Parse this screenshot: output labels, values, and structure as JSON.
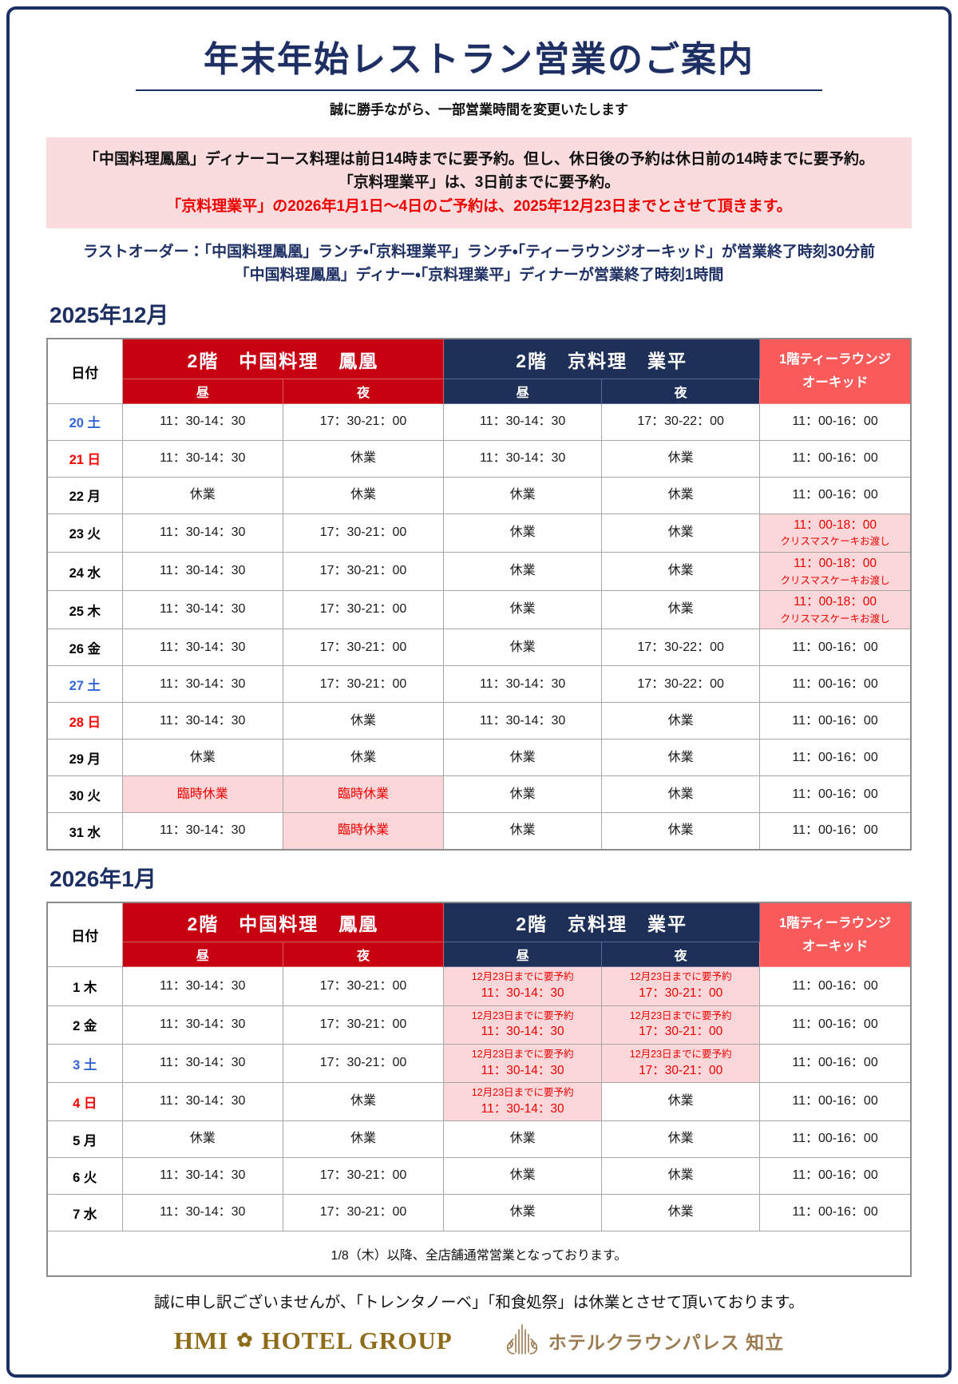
{
  "title": "年末年始レストラン営業のご案内",
  "subtitle": "誠に勝手ながら、一部営業時間を変更いたします",
  "notice": {
    "lines": [
      "「中国料理鳳凰」ディナーコース料理は前日14時までに要予約。但し、休日後の予約は休日前の14時までに要予約。",
      "「京料理業平」は、3日前までに要予約。",
      "「京料理業平」の2026年1月1日～4日のご予約は、2025年12月23日までとさせて頂きます。"
    ]
  },
  "last_order": [
    "ラストオーダー：「中国料理鳳凰」ランチ・「京料理業平」ランチ・「ティーラウンジオーキッド」が営業終了時刻30分前",
    "「中国料理鳳凰」ディナー・「京料理業平」ディナーが営業終了時刻1時間"
  ],
  "colors": {
    "navy": "#1E2F63",
    "table_navy": "#1F3058",
    "red": "#C70012",
    "salmon": "#F95B5B",
    "pink": "#FBD7D9",
    "red_text": "#EE0000",
    "sat": "#3365D6",
    "sun": "#FF0000",
    "gold": "#8E6C1A",
    "gold2": "#9A7B4F"
  },
  "tables": [
    {
      "month_label": "2025年12月",
      "columns": {
        "date": "日付",
        "restaurant1": "2階　中国料理　鳳凰",
        "restaurant2": "2階　京料理　業平",
        "lounge": [
          "1階ティーラウンジ",
          "オーキッド"
        ],
        "lunch": "昼",
        "dinner": "夜"
      },
      "rows": [
        {
          "date": "20 土",
          "color": "sat",
          "cells": [
            {
              "lines": [
                "11：30-14：30"
              ]
            },
            {
              "lines": [
                "17：30-21：00"
              ]
            },
            {
              "lines": [
                "11：30-14：30"
              ]
            },
            {
              "lines": [
                "17：30-22：00"
              ]
            },
            {
              "lines": [
                "11：00-16：00"
              ]
            }
          ]
        },
        {
          "date": "21 日",
          "color": "sun",
          "cells": [
            {
              "lines": [
                "11：30-14：30"
              ]
            },
            {
              "lines": [
                "休業"
              ]
            },
            {
              "lines": [
                "11：30-14：30"
              ]
            },
            {
              "lines": [
                "休業"
              ]
            },
            {
              "lines": [
                "11：00-16：00"
              ]
            }
          ]
        },
        {
          "date": "22 月",
          "color": "wd",
          "cells": [
            {
              "lines": [
                "休業"
              ]
            },
            {
              "lines": [
                "休業"
              ]
            },
            {
              "lines": [
                "休業"
              ]
            },
            {
              "lines": [
                "休業"
              ]
            },
            {
              "lines": [
                "11：00-16：00"
              ]
            }
          ]
        },
        {
          "date": "23 火",
          "color": "wd",
          "cells": [
            {
              "lines": [
                "11：30-14：30"
              ]
            },
            {
              "lines": [
                "17：30-21：00"
              ]
            },
            {
              "lines": [
                "休業"
              ]
            },
            {
              "lines": [
                "休業"
              ]
            },
            {
              "lines": [
                "11：00-18：00",
                "クリスマスケーキお渡し"
              ],
              "pink": true
            }
          ]
        },
        {
          "date": "24 水",
          "color": "wd",
          "cells": [
            {
              "lines": [
                "11：30-14：30"
              ]
            },
            {
              "lines": [
                "17：30-21：00"
              ]
            },
            {
              "lines": [
                "休業"
              ]
            },
            {
              "lines": [
                "休業"
              ]
            },
            {
              "lines": [
                "11：00-18：00",
                "クリスマスケーキお渡し"
              ],
              "pink": true
            }
          ]
        },
        {
          "date": "25 木",
          "color": "wd",
          "cells": [
            {
              "lines": [
                "11：30-14：30"
              ]
            },
            {
              "lines": [
                "17：30-21：00"
              ]
            },
            {
              "lines": [
                "休業"
              ]
            },
            {
              "lines": [
                "休業"
              ]
            },
            {
              "lines": [
                "11：00-18：00",
                "クリスマスケーキお渡し"
              ],
              "pink": true
            }
          ]
        },
        {
          "date": "26 金",
          "color": "wd",
          "cells": [
            {
              "lines": [
                "11：30-14：30"
              ]
            },
            {
              "lines": [
                "17：30-21：00"
              ]
            },
            {
              "lines": [
                "休業"
              ]
            },
            {
              "lines": [
                "17：30-22：00"
              ]
            },
            {
              "lines": [
                "11：00-16：00"
              ]
            }
          ]
        },
        {
          "date": "27 土",
          "color": "sat",
          "cells": [
            {
              "lines": [
                "11：30-14：30"
              ]
            },
            {
              "lines": [
                "17：30-21：00"
              ]
            },
            {
              "lines": [
                "11：30-14：30"
              ]
            },
            {
              "lines": [
                "17：30-22：00"
              ]
            },
            {
              "lines": [
                "11：00-16：00"
              ]
            }
          ]
        },
        {
          "date": "28 日",
          "color": "sun",
          "cells": [
            {
              "lines": [
                "11：30-14：30"
              ]
            },
            {
              "lines": [
                "休業"
              ]
            },
            {
              "lines": [
                "11：30-14：30"
              ]
            },
            {
              "lines": [
                "休業"
              ]
            },
            {
              "lines": [
                "11：00-16：00"
              ]
            }
          ]
        },
        {
          "date": "29 月",
          "color": "wd",
          "cells": [
            {
              "lines": [
                "休業"
              ]
            },
            {
              "lines": [
                "休業"
              ]
            },
            {
              "lines": [
                "休業"
              ]
            },
            {
              "lines": [
                "休業"
              ]
            },
            {
              "lines": [
                "11：00-16：00"
              ]
            }
          ]
        },
        {
          "date": "30 火",
          "color": "wd",
          "cells": [
            {
              "lines": [
                "臨時休業"
              ],
              "pink": true
            },
            {
              "lines": [
                "臨時休業"
              ],
              "pink": true
            },
            {
              "lines": [
                "休業"
              ]
            },
            {
              "lines": [
                "休業"
              ]
            },
            {
              "lines": [
                "11：00-16：00"
              ]
            }
          ]
        },
        {
          "date": "31 水",
          "color": "wd",
          "cells": [
            {
              "lines": [
                "11：30-14：30"
              ]
            },
            {
              "lines": [
                "臨時休業"
              ],
              "pink": true
            },
            {
              "lines": [
                "休業"
              ]
            },
            {
              "lines": [
                "休業"
              ]
            },
            {
              "lines": [
                "11：00-16：00"
              ]
            }
          ]
        }
      ],
      "footer": null
    },
    {
      "month_label": "2026年1月",
      "columns": {
        "date": "日付",
        "restaurant1": "2階　中国料理　鳳凰",
        "restaurant2": "2階　京料理　業平",
        "lounge": [
          "1階ティーラウンジ",
          "オーキッド"
        ],
        "lunch": "昼",
        "dinner": "夜"
      },
      "rows": [
        {
          "date": "1 木",
          "color": "wd",
          "cells": [
            {
              "lines": [
                "11：30-14：30"
              ]
            },
            {
              "lines": [
                "17：30-21：00"
              ]
            },
            {
              "lines": [
                "12月23日までに要予約",
                "11：30-14：30"
              ],
              "pink": true
            },
            {
              "lines": [
                "12月23日までに要予約",
                "17：30-21：00"
              ],
              "pink": true
            },
            {
              "lines": [
                "11：00-16：00"
              ]
            }
          ]
        },
        {
          "date": "2 金",
          "color": "wd",
          "cells": [
            {
              "lines": [
                "11：30-14：30"
              ]
            },
            {
              "lines": [
                "17：30-21：00"
              ]
            },
            {
              "lines": [
                "12月23日までに要予約",
                "11：30-14：30"
              ],
              "pink": true
            },
            {
              "lines": [
                "12月23日までに要予約",
                "17：30-21：00"
              ],
              "pink": true
            },
            {
              "lines": [
                "11：00-16：00"
              ]
            }
          ]
        },
        {
          "date": "3 土",
          "color": "sat",
          "cells": [
            {
              "lines": [
                "11：30-14：30"
              ]
            },
            {
              "lines": [
                "17：30-21：00"
              ]
            },
            {
              "lines": [
                "12月23日までに要予約",
                "11：30-14：30"
              ],
              "pink": true
            },
            {
              "lines": [
                "12月23日までに要予約",
                "17：30-21：00"
              ],
              "pink": true
            },
            {
              "lines": [
                "11：00-16：00"
              ]
            }
          ]
        },
        {
          "date": "4 日",
          "color": "sun",
          "cells": [
            {
              "lines": [
                "11：30-14：30"
              ]
            },
            {
              "lines": [
                "休業"
              ]
            },
            {
              "lines": [
                "12月23日までに要予約",
                "11：30-14：30"
              ],
              "pink": true
            },
            {
              "lines": [
                "休業"
              ]
            },
            {
              "lines": [
                "11：00-16：00"
              ]
            }
          ]
        },
        {
          "date": "5 月",
          "color": "wd",
          "cells": [
            {
              "lines": [
                "休業"
              ]
            },
            {
              "lines": [
                "休業"
              ]
            },
            {
              "lines": [
                "休業"
              ]
            },
            {
              "lines": [
                "休業"
              ]
            },
            {
              "lines": [
                "11：00-16：00"
              ]
            }
          ]
        },
        {
          "date": "6 火",
          "color": "wd",
          "cells": [
            {
              "lines": [
                "11：30-14：30"
              ]
            },
            {
              "lines": [
                "17：30-21：00"
              ]
            },
            {
              "lines": [
                "休業"
              ]
            },
            {
              "lines": [
                "休業"
              ]
            },
            {
              "lines": [
                "11：00-16：00"
              ]
            }
          ]
        },
        {
          "date": "7 水",
          "color": "wd",
          "cells": [
            {
              "lines": [
                "11：30-14：30"
              ]
            },
            {
              "lines": [
                "17：30-21：00"
              ]
            },
            {
              "lines": [
                "休業"
              ]
            },
            {
              "lines": [
                "休業"
              ]
            },
            {
              "lines": [
                "11：00-16：00"
              ]
            }
          ]
        }
      ],
      "footer": "1/8（木）以降、全店舗通常営業となっております。"
    }
  ],
  "closing_note": "誠に申し訳ございませんが、「トレンタノーベ」「和食処祭」は休業とさせて頂いております。",
  "logos": {
    "hmi_left": "HMI",
    "hmi_flower": "✿",
    "hmi_right": "HOTEL GROUP",
    "crown_text": "ホテルクラウンパレス 知立"
  }
}
